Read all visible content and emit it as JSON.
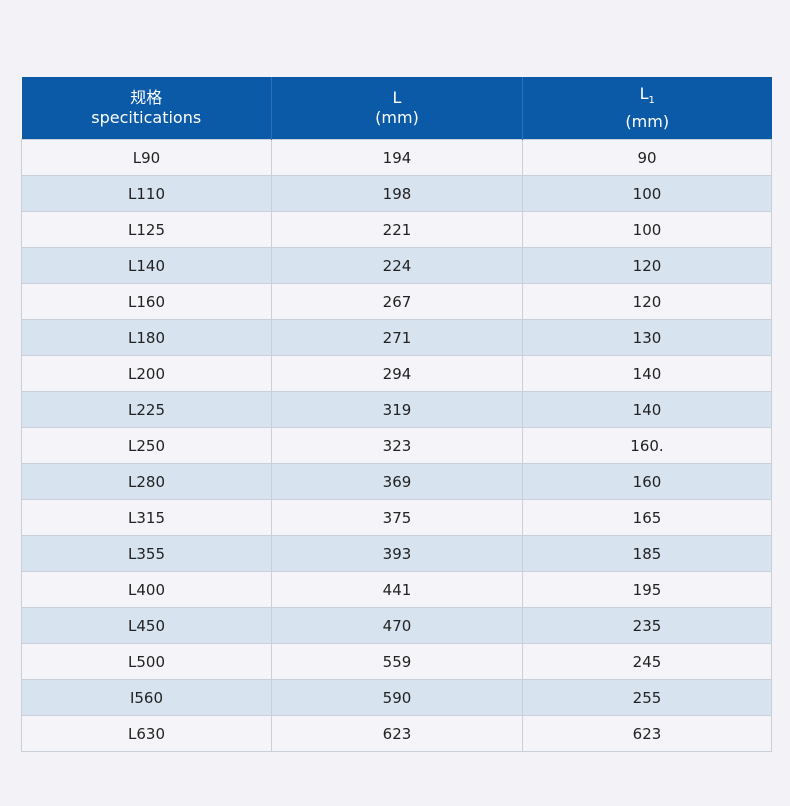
{
  "table": {
    "headers": [
      {
        "line1": "规格",
        "line2": "specitications"
      },
      {
        "line1": "L",
        "line2": "(mm)"
      },
      {
        "line1": "L",
        "sub": "1",
        "line2": "(mm)"
      }
    ],
    "rows": [
      [
        "L90",
        "194",
        "90"
      ],
      [
        "L110",
        "198",
        "100"
      ],
      [
        "L125",
        "221",
        "100"
      ],
      [
        "L140",
        "224",
        "120"
      ],
      [
        "L160",
        "267",
        "120"
      ],
      [
        "L180",
        "271",
        "130"
      ],
      [
        "L200",
        "294",
        "140"
      ],
      [
        "L225",
        "319",
        "140"
      ],
      [
        "L250",
        "323",
        "160."
      ],
      [
        "L280",
        "369",
        "160"
      ],
      [
        "L315",
        "375",
        "165"
      ],
      [
        "L355",
        "393",
        "185"
      ],
      [
        "L400",
        "441",
        "195"
      ],
      [
        "L450",
        "470",
        "235"
      ],
      [
        "L500",
        "559",
        "245"
      ],
      [
        "I560",
        "590",
        "255"
      ],
      [
        "L630",
        "623",
        "623"
      ]
    ]
  },
  "colors": {
    "header": "#0b5aa7",
    "row_alt": "#d8e3f0",
    "row": "#f5f5f9"
  }
}
